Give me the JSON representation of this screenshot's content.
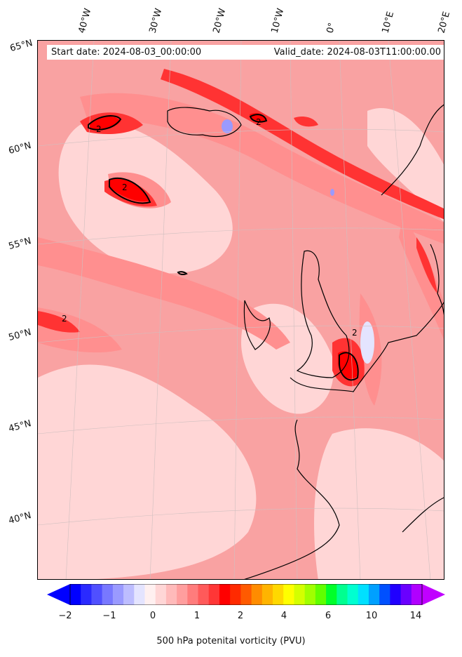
{
  "title": {
    "start": "Start date: 2024-08-03_00:00:00",
    "valid": "Valid_date: 2024-08-03T11:00:00.00"
  },
  "axes": {
    "longitudes": [
      "40°W",
      "30°W",
      "20°W",
      "10°W",
      "0°",
      "10°E",
      "20°E"
    ],
    "latitudes": [
      "65°N",
      "60°N",
      "55°N",
      "50°N",
      "45°N",
      "40°N"
    ]
  },
  "colorbar": {
    "label": "500 hPa potenital vorticity (PVU)",
    "ticks": [
      "−2",
      "−1",
      "0",
      "1",
      "2",
      "4",
      "6",
      "10",
      "14"
    ],
    "colors": [
      "#0000ff",
      "#2a2aff",
      "#5050ff",
      "#7878ff",
      "#9a9aff",
      "#bdbdff",
      "#e4e4ff",
      "#fff0f0",
      "#ffd6d6",
      "#ffbaba",
      "#ff9e9e",
      "#ff7c7c",
      "#ff5a5a",
      "#ff3636",
      "#ff0000",
      "#ff2a00",
      "#ff5a00",
      "#ff8c00",
      "#ffb400",
      "#ffd800",
      "#ffff00",
      "#d4ff00",
      "#a0ff00",
      "#60ff00",
      "#00ff2a",
      "#00ff90",
      "#00ffd0",
      "#00e0ff",
      "#00a0ff",
      "#0050ff",
      "#2000ff",
      "#6a00ff",
      "#b000ff"
    ],
    "extend_low": "#0000ff",
    "extend_high": "#c000ff"
  },
  "contour_labels": [
    "2",
    "2",
    "2",
    "2",
    "2"
  ],
  "colors": {
    "background": "#f9a2a2",
    "low": "#ffd6d6",
    "mid": "#ff8f8f",
    "high": "#ff2a2a",
    "peak": "#ff0000",
    "negative": "#9a9aff",
    "coast": "#000000"
  }
}
